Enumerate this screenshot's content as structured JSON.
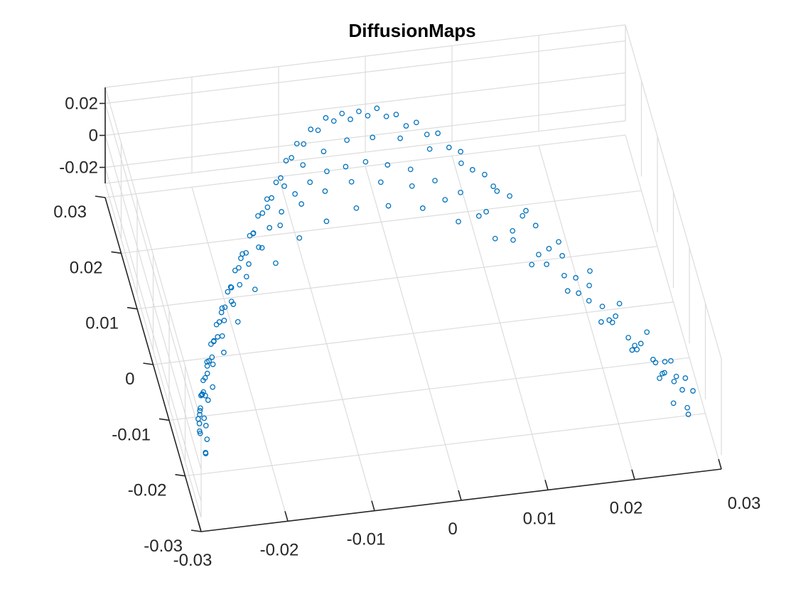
{
  "chart_data": {
    "type": "scatter",
    "title": "DiffusionMaps",
    "projection": "3d",
    "grid": true,
    "marker": "open circle",
    "marker_color": "#0072BD",
    "axis_color": "#262626",
    "grid_color": "#dcdcdc",
    "xlim": [
      -0.03,
      0.03
    ],
    "ylim": [
      -0.03,
      0.03
    ],
    "zlim": [
      -0.03,
      0.03
    ],
    "x_ticks": [
      -0.03,
      -0.02,
      -0.01,
      0,
      0.01,
      0.02,
      0.03
    ],
    "y_ticks": [
      -0.03,
      -0.02,
      -0.01,
      0,
      0.01,
      0.02,
      0.03
    ],
    "z_ticks": [
      0.02,
      0,
      -0.02
    ],
    "x_tick_labels": [
      "-0.03",
      "-0.02",
      "-0.01",
      "0",
      "0.01",
      "0.02",
      "0.03"
    ],
    "y_tick_labels": [
      "-0.03",
      "-0.02",
      "-0.01",
      "0",
      "0.01",
      "0.02",
      "0.03"
    ],
    "z_tick_labels": [
      "0.02",
      "0",
      "-0.02"
    ],
    "xlabel": "",
    "ylabel": "",
    "zlabel": "",
    "series": [
      {
        "values": [
          [
            -0.029,
            -0.024,
            0.001
          ],
          [
            -0.0288,
            -0.0225,
            -0.003
          ],
          [
            -0.0285,
            -0.021,
            0.002
          ],
          [
            -0.0282,
            -0.0195,
            -0.001
          ],
          [
            -0.0278,
            -0.018,
            0.003
          ],
          [
            -0.0274,
            -0.0165,
            -0.002
          ],
          [
            -0.027,
            -0.015,
            0.0015
          ],
          [
            -0.0265,
            -0.0135,
            -0.0025
          ],
          [
            -0.026,
            -0.012,
            0.002
          ],
          [
            -0.0255,
            -0.0105,
            -0.003
          ],
          [
            -0.025,
            -0.009,
            0.002
          ],
          [
            -0.0244,
            -0.0075,
            -0.002
          ],
          [
            -0.0238,
            -0.006,
            0.003
          ],
          [
            -0.0232,
            -0.0045,
            -0.001
          ],
          [
            -0.0226,
            -0.003,
            0.002
          ],
          [
            -0.022,
            -0.0015,
            -0.003
          ],
          [
            -0.0214,
            0.0,
            0.001
          ],
          [
            -0.0207,
            0.0015,
            -0.002
          ],
          [
            -0.02,
            0.003,
            0.003
          ],
          [
            -0.0193,
            0.0045,
            -0.001
          ],
          [
            -0.0186,
            0.006,
            0.002
          ],
          [
            -0.0179,
            0.0075,
            -0.003
          ],
          [
            -0.0172,
            0.009,
            0.002
          ],
          [
            -0.0165,
            0.0105,
            -0.002
          ],
          [
            -0.0157,
            0.012,
            0.003
          ],
          [
            -0.0149,
            0.0135,
            -0.001
          ],
          [
            -0.0141,
            0.015,
            0.002
          ],
          [
            -0.0133,
            0.0165,
            -0.003
          ],
          [
            -0.0125,
            0.018,
            0.001
          ],
          [
            -0.0117,
            0.0195,
            -0.002
          ],
          [
            -0.0108,
            0.021,
            0.003
          ],
          [
            -0.0099,
            0.0225,
            -0.001
          ],
          [
            -0.009,
            0.024,
            0.002
          ],
          [
            -0.008,
            0.0252,
            -0.003
          ],
          [
            -0.007,
            0.0262,
            0.002
          ],
          [
            -0.006,
            0.027,
            -0.002
          ],
          [
            -0.005,
            0.0276,
            0.003
          ],
          [
            -0.004,
            0.028,
            -0.001
          ],
          [
            -0.003,
            0.0283,
            0.002
          ],
          [
            -0.002,
            0.0285,
            -0.003
          ],
          [
            -0.001,
            0.0286,
            0.001
          ],
          [
            0.0,
            0.0285,
            -0.002
          ],
          [
            0.001,
            0.0282,
            0.003
          ],
          [
            0.002,
            0.0277,
            -0.001
          ],
          [
            0.003,
            0.027,
            0.002
          ],
          [
            0.004,
            0.0262,
            -0.003
          ],
          [
            0.005,
            0.0252,
            0.002
          ],
          [
            0.006,
            0.024,
            -0.002
          ],
          [
            0.007,
            0.0226,
            0.003
          ],
          [
            0.008,
            0.021,
            -0.001
          ],
          [
            0.009,
            0.0192,
            0.002
          ],
          [
            0.01,
            0.0172,
            -0.003
          ],
          [
            0.011,
            0.015,
            0.001
          ],
          [
            0.012,
            0.0127,
            -0.002
          ],
          [
            0.013,
            0.0102,
            0.003
          ],
          [
            0.014,
            0.0076,
            -0.001
          ],
          [
            0.015,
            0.0048,
            0.002
          ],
          [
            0.016,
            0.0019,
            -0.003
          ],
          [
            0.017,
            -0.001,
            0.002
          ],
          [
            0.018,
            -0.004,
            -0.002
          ],
          [
            0.019,
            -0.007,
            0.003
          ],
          [
            0.02,
            -0.0098,
            -0.001
          ],
          [
            0.021,
            -0.0126,
            0.002
          ],
          [
            0.022,
            -0.0152,
            -0.003
          ],
          [
            0.023,
            -0.0176,
            0.001
          ],
          [
            0.024,
            -0.0198,
            -0.002
          ],
          [
            0.025,
            -0.0218,
            0.003
          ],
          [
            0.026,
            -0.0235,
            -0.001
          ],
          [
            0.0268,
            -0.0248,
            0.002
          ],
          [
            0.0275,
            -0.0258,
            -0.003
          ],
          [
            -0.0275,
            -0.016,
            -0.012
          ],
          [
            -0.0266,
            -0.013,
            -0.013
          ],
          [
            -0.0256,
            -0.01,
            -0.0125
          ],
          [
            -0.0245,
            -0.007,
            -0.0135
          ],
          [
            -0.0233,
            -0.004,
            -0.012
          ],
          [
            -0.022,
            -0.001,
            -0.013
          ],
          [
            -0.0206,
            0.002,
            -0.0125
          ],
          [
            -0.0191,
            0.005,
            -0.0135
          ],
          [
            -0.0175,
            0.008,
            -0.012
          ],
          [
            -0.0158,
            0.011,
            -0.013
          ],
          [
            -0.014,
            0.014,
            -0.0125
          ],
          [
            -0.0121,
            0.0168,
            -0.0135
          ],
          [
            -0.0101,
            0.0192,
            -0.012
          ],
          [
            -0.008,
            0.0212,
            -0.013
          ],
          [
            -0.0058,
            0.0226,
            -0.0125
          ],
          [
            -0.0035,
            0.0233,
            -0.0135
          ],
          [
            -0.0012,
            0.0233,
            -0.012
          ],
          [
            0.0012,
            0.0226,
            -0.013
          ],
          [
            0.0036,
            0.0212,
            -0.0125
          ],
          [
            0.006,
            0.019,
            -0.0135
          ],
          [
            0.0084,
            0.016,
            -0.012
          ],
          [
            0.0107,
            0.0124,
            -0.013
          ],
          [
            0.013,
            0.0084,
            -0.0125
          ],
          [
            0.0152,
            0.004,
            -0.0135
          ],
          [
            0.0173,
            -0.0006,
            -0.012
          ],
          [
            0.0193,
            -0.0052,
            -0.013
          ],
          [
            0.0212,
            -0.0096,
            -0.0125
          ],
          [
            0.023,
            -0.0138,
            -0.0135
          ],
          [
            0.0247,
            -0.0176,
            -0.012
          ],
          [
            0.0262,
            -0.021,
            -0.013
          ],
          [
            -0.0284,
            -0.0195,
            -0.006
          ],
          [
            -0.0271,
            -0.015,
            -0.007
          ],
          [
            -0.0257,
            -0.0105,
            -0.006
          ],
          [
            -0.0241,
            -0.006,
            -0.007
          ],
          [
            -0.0224,
            -0.0015,
            -0.006
          ],
          [
            -0.0205,
            0.003,
            -0.007
          ],
          [
            -0.0185,
            0.0075,
            -0.006
          ],
          [
            -0.0163,
            0.0118,
            -0.007
          ],
          [
            -0.0139,
            0.0158,
            -0.006
          ],
          [
            -0.0113,
            0.0194,
            -0.007
          ],
          [
            -0.0086,
            0.0224,
            -0.006
          ],
          [
            -0.0058,
            0.0246,
            -0.007
          ],
          [
            -0.0029,
            0.0258,
            -0.006
          ],
          [
            0.0001,
            0.026,
            -0.007
          ],
          [
            0.0031,
            0.025,
            -0.006
          ],
          [
            0.0061,
            0.0228,
            -0.007
          ],
          [
            0.0091,
            0.0194,
            -0.006
          ],
          [
            0.012,
            0.015,
            -0.007
          ],
          [
            0.0148,
            0.0098,
            -0.006
          ],
          [
            0.0175,
            0.004,
            -0.007
          ],
          [
            0.02,
            -0.002,
            -0.006
          ],
          [
            0.0223,
            -0.008,
            -0.007
          ],
          [
            0.0244,
            -0.0138,
            -0.006
          ],
          [
            0.0262,
            -0.019,
            -0.007
          ],
          [
            -0.0278,
            -0.017,
            -0.018
          ],
          [
            -0.0262,
            -0.012,
            -0.019
          ],
          [
            -0.0244,
            -0.007,
            -0.018
          ],
          [
            -0.0224,
            -0.002,
            -0.019
          ],
          [
            -0.0202,
            0.003,
            -0.018
          ],
          [
            -0.0178,
            0.0078,
            -0.019
          ],
          [
            -0.0152,
            0.0122,
            -0.018
          ],
          [
            -0.0124,
            0.016,
            -0.019
          ],
          [
            -0.0094,
            0.019,
            -0.018
          ],
          [
            -0.0063,
            0.021,
            -0.019
          ],
          [
            -0.0031,
            0.0218,
            -0.018
          ],
          [
            0.0002,
            0.0214,
            -0.019
          ],
          [
            0.0035,
            0.0198,
            -0.018
          ],
          [
            0.0068,
            0.017,
            -0.019
          ],
          [
            0.01,
            0.0132,
            -0.018
          ],
          [
            0.0131,
            0.0086,
            -0.019
          ],
          [
            0.016,
            0.0034,
            -0.018
          ],
          [
            0.0187,
            -0.002,
            -0.019
          ],
          [
            0.0212,
            -0.0076,
            -0.018
          ],
          [
            0.0234,
            -0.013,
            -0.019
          ],
          [
            0.0254,
            -0.018,
            -0.018
          ],
          [
            -0.0268,
            -0.0145,
            -0.024
          ],
          [
            -0.0248,
            -0.009,
            -0.025
          ],
          [
            -0.0225,
            -0.0035,
            -0.024
          ],
          [
            -0.0199,
            0.0018,
            -0.025
          ],
          [
            -0.017,
            0.0068,
            -0.024
          ],
          [
            -0.0138,
            0.0112,
            -0.025
          ],
          [
            -0.0104,
            0.0148,
            -0.024
          ],
          [
            -0.0068,
            0.0174,
            -0.025
          ],
          [
            -0.0031,
            0.0188,
            -0.024
          ],
          [
            0.0006,
            0.0188,
            -0.025
          ],
          [
            0.0043,
            0.0174,
            -0.024
          ],
          [
            0.0079,
            0.0146,
            -0.025
          ],
          [
            0.0114,
            0.0106,
            -0.024
          ],
          [
            0.0147,
            0.0056,
            -0.025
          ],
          [
            0.0178,
            0.0,
            -0.024
          ],
          [
            0.0206,
            -0.0058,
            -0.025
          ],
          [
            0.0231,
            -0.0116,
            -0.024
          ],
          [
            0.0253,
            -0.0168,
            -0.025
          ],
          [
            -0.0282,
            -0.023,
            -0.015
          ],
          [
            -0.0279,
            -0.0215,
            -0.021
          ],
          [
            -0.0276,
            -0.02,
            -0.009
          ],
          [
            -0.0272,
            -0.0185,
            -0.023
          ],
          [
            -0.0268,
            -0.017,
            -0.004
          ],
          [
            0.027,
            -0.025,
            -0.016
          ],
          [
            0.0272,
            -0.0245,
            -0.022
          ],
          [
            0.0266,
            -0.024,
            -0.008
          ],
          [
            0.0258,
            -0.0228,
            -0.02
          ],
          [
            0.025,
            -0.0215,
            -0.005
          ]
        ]
      }
    ]
  }
}
